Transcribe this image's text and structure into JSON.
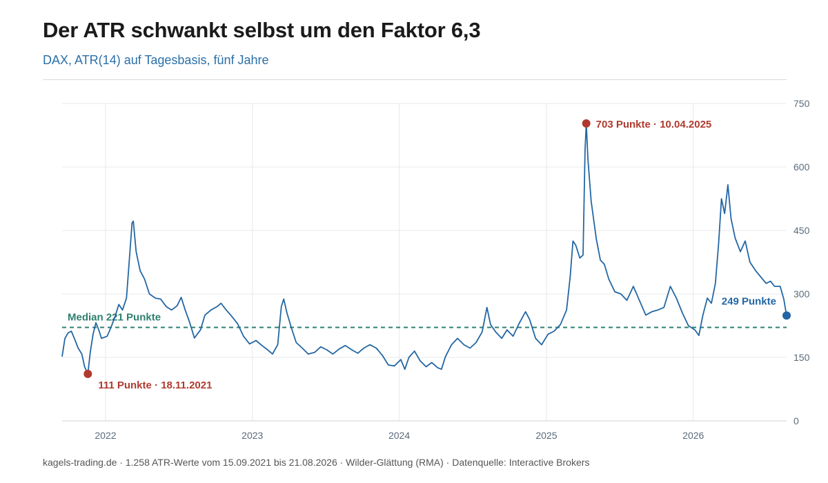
{
  "title": "Der ATR schwankt selbst um den Faktor 6,3",
  "subtitle": "DAX, ATR(14) auf Tagesbasis, fünf Jahre",
  "footer": "kagels-trading.de · 1.258 ATR-Werte vom 15.09.2021 bis 21.08.2026 · Wilder-Glättung (RMA) · Datenquelle: Interactive Brokers",
  "colors": {
    "line": "#2266a3",
    "median": "#2e7f6e",
    "extreme": "#b03a2e",
    "last": "#2266a3",
    "grid": "#e8e8e8",
    "axis_text": "#5a6b7b"
  },
  "chart_data": {
    "type": "line",
    "xlabel": "",
    "ylabel": "",
    "ylim": [
      0,
      750
    ],
    "xlim": [
      "2021-09-15",
      "2026-08-21"
    ],
    "yticks": [
      0,
      150,
      300,
      450,
      600,
      750
    ],
    "xticks": [
      {
        "date": "2022-01-01",
        "label": "2022"
      },
      {
        "date": "2023-01-01",
        "label": "2023"
      },
      {
        "date": "2024-01-01",
        "label": "2024"
      },
      {
        "date": "2025-01-01",
        "label": "2025"
      },
      {
        "date": "2026-01-01",
        "label": "2026"
      }
    ],
    "grid": true,
    "y_axis_side": "right",
    "median": {
      "value": 221,
      "label": "Median 221 Punkte"
    },
    "annotations": [
      {
        "id": "min",
        "date": "2021-11-18",
        "value": 111,
        "label": "111 Punkte · 18.11.2021"
      },
      {
        "id": "max",
        "date": "2025-04-10",
        "value": 703,
        "label": "703 Punkte · 10.04.2025"
      },
      {
        "id": "last",
        "date": "2026-08-21",
        "value": 249,
        "label": "249 Punkte"
      }
    ],
    "series": [
      {
        "points": [
          [
            "2021-09-15",
            152
          ],
          [
            "2021-09-22",
            195
          ],
          [
            "2021-09-30",
            208
          ],
          [
            "2021-10-08",
            212
          ],
          [
            "2021-10-15",
            196
          ],
          [
            "2021-10-25",
            172
          ],
          [
            "2021-11-03",
            158
          ],
          [
            "2021-11-10",
            128
          ],
          [
            "2021-11-18",
            111
          ],
          [
            "2021-11-24",
            162
          ],
          [
            "2021-12-01",
            205
          ],
          [
            "2021-12-08",
            232
          ],
          [
            "2021-12-15",
            215
          ],
          [
            "2021-12-22",
            195
          ],
          [
            "2022-01-05",
            200
          ],
          [
            "2022-01-15",
            222
          ],
          [
            "2022-01-25",
            248
          ],
          [
            "2022-02-03",
            275
          ],
          [
            "2022-02-12",
            262
          ],
          [
            "2022-02-22",
            290
          ],
          [
            "2022-03-01",
            380
          ],
          [
            "2022-03-08",
            468
          ],
          [
            "2022-03-11",
            472
          ],
          [
            "2022-03-18",
            400
          ],
          [
            "2022-03-28",
            355
          ],
          [
            "2022-04-08",
            335
          ],
          [
            "2022-04-20",
            300
          ],
          [
            "2022-05-05",
            290
          ],
          [
            "2022-05-18",
            288
          ],
          [
            "2022-06-01",
            270
          ],
          [
            "2022-06-14",
            262
          ],
          [
            "2022-06-28",
            272
          ],
          [
            "2022-07-08",
            292
          ],
          [
            "2022-07-18",
            262
          ],
          [
            "2022-07-28",
            236
          ],
          [
            "2022-08-10",
            196
          ],
          [
            "2022-08-25",
            215
          ],
          [
            "2022-09-05",
            250
          ],
          [
            "2022-09-20",
            262
          ],
          [
            "2022-10-05",
            270
          ],
          [
            "2022-10-15",
            278
          ],
          [
            "2022-10-28",
            262
          ],
          [
            "2022-11-10",
            248
          ],
          [
            "2022-11-25",
            230
          ],
          [
            "2022-12-10",
            200
          ],
          [
            "2022-12-25",
            182
          ],
          [
            "2023-01-10",
            190
          ],
          [
            "2023-01-25",
            178
          ],
          [
            "2023-02-08",
            168
          ],
          [
            "2023-02-20",
            158
          ],
          [
            "2023-03-05",
            180
          ],
          [
            "2023-03-14",
            270
          ],
          [
            "2023-03-20",
            288
          ],
          [
            "2023-03-28",
            255
          ],
          [
            "2023-04-08",
            220
          ],
          [
            "2023-04-20",
            185
          ],
          [
            "2023-05-05",
            172
          ],
          [
            "2023-05-20",
            158
          ],
          [
            "2023-06-05",
            162
          ],
          [
            "2023-06-20",
            175
          ],
          [
            "2023-07-05",
            168
          ],
          [
            "2023-07-20",
            158
          ],
          [
            "2023-08-05",
            170
          ],
          [
            "2023-08-20",
            178
          ],
          [
            "2023-09-05",
            168
          ],
          [
            "2023-09-20",
            160
          ],
          [
            "2023-10-05",
            172
          ],
          [
            "2023-10-20",
            180
          ],
          [
            "2023-11-05",
            172
          ],
          [
            "2023-11-20",
            155
          ],
          [
            "2023-12-05",
            132
          ],
          [
            "2023-12-20",
            130
          ],
          [
            "2024-01-05",
            145
          ],
          [
            "2024-01-15",
            122
          ],
          [
            "2024-01-25",
            150
          ],
          [
            "2024-02-08",
            165
          ],
          [
            "2024-02-22",
            142
          ],
          [
            "2024-03-08",
            128
          ],
          [
            "2024-03-22",
            138
          ],
          [
            "2024-04-05",
            126
          ],
          [
            "2024-04-15",
            122
          ],
          [
            "2024-04-25",
            152
          ],
          [
            "2024-05-10",
            180
          ],
          [
            "2024-05-25",
            195
          ],
          [
            "2024-06-10",
            180
          ],
          [
            "2024-06-25",
            172
          ],
          [
            "2024-07-10",
            185
          ],
          [
            "2024-07-25",
            210
          ],
          [
            "2024-08-06",
            268
          ],
          [
            "2024-08-15",
            228
          ],
          [
            "2024-08-28",
            210
          ],
          [
            "2024-09-12",
            195
          ],
          [
            "2024-09-25",
            215
          ],
          [
            "2024-10-10",
            200
          ],
          [
            "2024-10-25",
            230
          ],
          [
            "2024-11-10",
            258
          ],
          [
            "2024-11-20",
            240
          ],
          [
            "2024-12-05",
            195
          ],
          [
            "2024-12-20",
            180
          ],
          [
            "2025-01-05",
            205
          ],
          [
            "2025-01-20",
            212
          ],
          [
            "2025-02-05",
            228
          ],
          [
            "2025-02-20",
            262
          ],
          [
            "2025-03-01",
            340
          ],
          [
            "2025-03-08",
            425
          ],
          [
            "2025-03-15",
            415
          ],
          [
            "2025-03-25",
            385
          ],
          [
            "2025-04-02",
            392
          ],
          [
            "2025-04-07",
            640
          ],
          [
            "2025-04-10",
            703
          ],
          [
            "2025-04-14",
            620
          ],
          [
            "2025-04-22",
            520
          ],
          [
            "2025-05-05",
            430
          ],
          [
            "2025-05-15",
            380
          ],
          [
            "2025-05-25",
            370
          ],
          [
            "2025-06-05",
            335
          ],
          [
            "2025-06-20",
            305
          ],
          [
            "2025-07-05",
            300
          ],
          [
            "2025-07-20",
            285
          ],
          [
            "2025-08-05",
            318
          ],
          [
            "2025-08-20",
            285
          ],
          [
            "2025-09-05",
            250
          ],
          [
            "2025-09-20",
            258
          ],
          [
            "2025-10-05",
            262
          ],
          [
            "2025-10-20",
            268
          ],
          [
            "2025-11-05",
            318
          ],
          [
            "2025-11-20",
            290
          ],
          [
            "2025-12-05",
            255
          ],
          [
            "2025-12-20",
            225
          ],
          [
            "2026-01-05",
            215
          ],
          [
            "2026-01-15",
            202
          ],
          [
            "2026-01-25",
            250
          ],
          [
            "2026-02-05",
            290
          ],
          [
            "2026-02-15",
            278
          ],
          [
            "2026-02-25",
            325
          ],
          [
            "2026-03-05",
            420
          ],
          [
            "2026-03-12",
            525
          ],
          [
            "2026-03-20",
            490
          ],
          [
            "2026-03-28",
            558
          ],
          [
            "2026-04-05",
            478
          ],
          [
            "2026-04-15",
            432
          ],
          [
            "2026-04-28",
            400
          ],
          [
            "2026-05-10",
            425
          ],
          [
            "2026-05-22",
            375
          ],
          [
            "2026-06-05",
            355
          ],
          [
            "2026-06-18",
            340
          ],
          [
            "2026-07-01",
            325
          ],
          [
            "2026-07-12",
            330
          ],
          [
            "2026-07-22",
            318
          ],
          [
            "2026-08-05",
            318
          ],
          [
            "2026-08-14",
            288
          ],
          [
            "2026-08-21",
            249
          ]
        ]
      }
    ]
  }
}
